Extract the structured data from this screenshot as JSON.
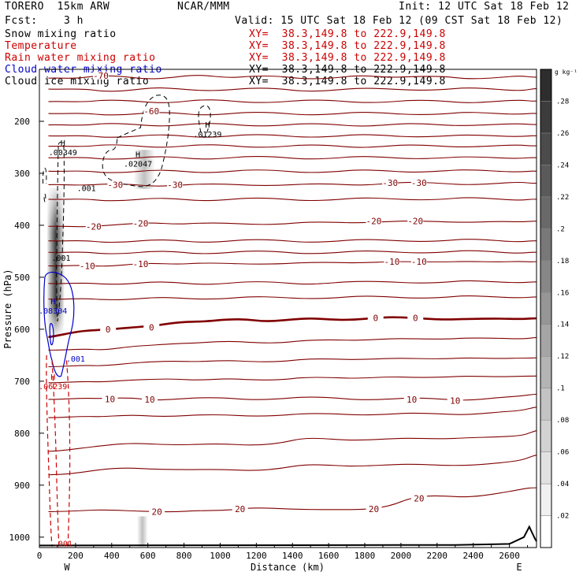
{
  "header": {
    "model": "TORERO  15km ARW",
    "center": "NCAR/MMM",
    "init": "Init: 12 UTC Sat 18 Feb 12",
    "fcst": "Fcst:    3 h",
    "valid": "Valid: 15 UTC Sat 18 Feb 12 (09 CST Sat 18 Feb 12)"
  },
  "fields": [
    {
      "name": "Snow mixing ratio",
      "xy": "XY=  38.3,149.8 to 222.9,149.8",
      "color": "#000000"
    },
    {
      "name": "Temperature",
      "xy": "XY=  38.3,149.8 to 222.9,149.8",
      "color": "#cc0000"
    },
    {
      "name": "Rain water mixing ratio",
      "xy": "XY=  38.3,149.8 to 222.9,149.8",
      "color": "#cc0000"
    },
    {
      "name": "Cloud water mixing ratio",
      "xy": "XY=  38.3,149.8 to 222.9,149.8",
      "color": "#0000cc"
    },
    {
      "name": "Cloud ice mixing ratio",
      "xy": "XY=  38.3,149.8 to 222.9,149.8",
      "color": "#000000"
    }
  ],
  "chart_data": {
    "type": "cross-section",
    "xlabel": "Distance (km)",
    "ylabel": "Pressure (hPa)",
    "xlim": [
      0,
      2750
    ],
    "ylim": [
      100,
      1020
    ],
    "x_ticks": [
      0,
      200,
      400,
      600,
      800,
      1000,
      1200,
      1400,
      1600,
      1800,
      2000,
      2200,
      2400,
      2600
    ],
    "y_ticks": [
      200,
      300,
      400,
      500,
      600,
      700,
      800,
      900,
      1000
    ],
    "x_ends": [
      "W",
      "E"
    ],
    "shading_title": "g kg⁻¹",
    "shading_levels": [
      ".02",
      ".04",
      ".06",
      ".08",
      ".1",
      ".12",
      ".14",
      ".16",
      ".18",
      ".2",
      ".22",
      ".24",
      ".26",
      ".28"
    ],
    "temperature_contour_labels": [
      {
        "text": "-70",
        "x": 340,
        "p": 112
      },
      {
        "text": "-60",
        "x": 620,
        "p": 180
      },
      {
        "text": "-30",
        "x": 420,
        "p": 322
      },
      {
        "text": "-30",
        "x": 750,
        "p": 322
      },
      {
        "text": "-30",
        "x": 1940,
        "p": 318
      },
      {
        "text": "-30",
        "x": 2100,
        "p": 318
      },
      {
        "text": "-20",
        "x": 300,
        "p": 402
      },
      {
        "text": "-20",
        "x": 560,
        "p": 396
      },
      {
        "text": "-20",
        "x": 1850,
        "p": 392
      },
      {
        "text": "-20",
        "x": 2080,
        "p": 392
      },
      {
        "text": "-10",
        "x": 265,
        "p": 478
      },
      {
        "text": "-10",
        "x": 560,
        "p": 474
      },
      {
        "text": "-10",
        "x": 1950,
        "p": 470
      },
      {
        "text": "-10",
        "x": 2100,
        "p": 470
      },
      {
        "text": "0",
        "x": 380,
        "p": 600
      },
      {
        "text": "0",
        "x": 620,
        "p": 596
      },
      {
        "text": "0",
        "x": 1860,
        "p": 578
      },
      {
        "text": "0",
        "x": 2080,
        "p": 578
      },
      {
        "text": "10",
        "x": 390,
        "p": 734
      },
      {
        "text": "10",
        "x": 610,
        "p": 735
      },
      {
        "text": "10",
        "x": 2060,
        "p": 735
      },
      {
        "text": "10",
        "x": 2300,
        "p": 737
      },
      {
        "text": "20",
        "x": 650,
        "p": 951
      },
      {
        "text": "20",
        "x": 1110,
        "p": 946
      },
      {
        "text": "20",
        "x": 1850,
        "p": 946
      },
      {
        "text": "20",
        "x": 2100,
        "p": 925
      }
    ],
    "maxima": [
      {
        "type": "H",
        "value": ".00349",
        "x": 130,
        "p": 250,
        "color": "#000000"
      },
      {
        "type": "H",
        "value": ".02047",
        "x": 545,
        "p": 272,
        "color": "#000000"
      },
      {
        "type": "H",
        "value": ".01239",
        "x": 930,
        "p": 215,
        "color": "#000000"
      },
      {
        "type": "H",
        "value": ".08304",
        "x": 75,
        "p": 555,
        "color": "#0000cc"
      },
      {
        "type": "H",
        "value": ".06239",
        "x": 75,
        "p": 700,
        "color": "#cc0000"
      }
    ],
    "minor_labels": [
      {
        "text": ".001",
        "x": 260,
        "p": 328,
        "color": "#000000"
      },
      {
        "text": ".001",
        "x": 120,
        "p": 462,
        "color": "#000000"
      },
      {
        "text": ".001",
        "x": 200,
        "p": 656,
        "color": "#0000cc"
      },
      {
        "text": ".001",
        "x": 130,
        "p": 1012,
        "color": "#cc0000"
      }
    ]
  }
}
